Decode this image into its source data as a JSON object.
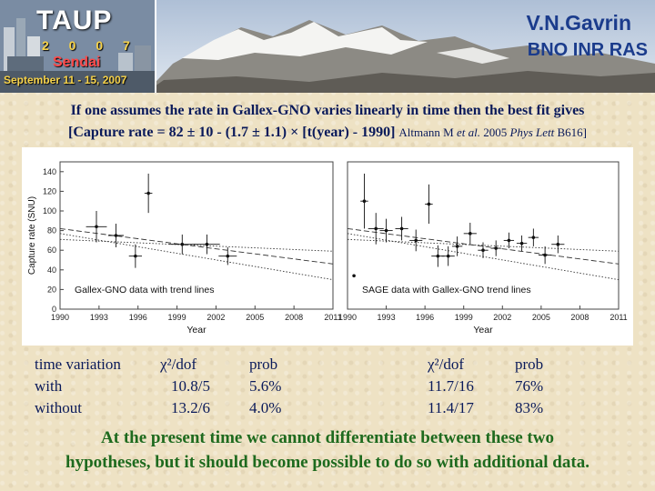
{
  "banner": {
    "logo": {
      "title": "TAUP",
      "year": "2 0 0 7",
      "city": "Sendai",
      "dates": "September 11 - 15, 2007"
    },
    "author": "V.N.Gavrin",
    "institution": "BNO INR RAS"
  },
  "statement": {
    "line1": "If one assumes the rate in Gallex-GNO varies linearly in time then the best fit gives",
    "formula": "[Capture rate = 82 ± 10 - (1.7 ± 1.1) × [t(year) - 1990]",
    "ref_prefix": "Altmann M ",
    "ref_etal": "et al.",
    "ref_year": " 2005 ",
    "ref_journal": "Phys Lett",
    "ref_vol": " B616]"
  },
  "chart_data": [
    {
      "type": "scatter",
      "title": "Gallex-GNO data with trend lines",
      "xlabel": "Year",
      "ylabel": "Capture rate (SNU)",
      "xlim": [
        1990,
        2011
      ],
      "ylim": [
        0,
        150
      ],
      "xticks": [
        1990,
        1993,
        1996,
        1999,
        2002,
        2005,
        2008,
        2011
      ],
      "yticks": [
        0,
        20,
        40,
        60,
        80,
        100,
        120,
        140
      ],
      "series": [
        {
          "points": [
            {
              "x": 1992.8,
              "y": 84,
              "xerr": 0.8,
              "yerr": 16
            },
            {
              "x": 1994.3,
              "y": 75,
              "xerr": 0.6,
              "yerr": 12
            },
            {
              "x": 1995.8,
              "y": 54,
              "xerr": 0.5,
              "yerr": 12
            },
            {
              "x": 1996.8,
              "y": 118,
              "xerr": 0.3,
              "yerr": 20
            },
            {
              "x": 1999.4,
              "y": 66,
              "xerr": 1.0,
              "yerr": 10
            },
            {
              "x": 2001.3,
              "y": 66,
              "xerr": 1.0,
              "yerr": 10
            },
            {
              "x": 2002.9,
              "y": 54,
              "xerr": 0.7,
              "yerr": 9
            }
          ]
        }
      ],
      "trend_lines": [
        {
          "style": "dashed",
          "from": [
            1990,
            82
          ],
          "to": [
            2011,
            46
          ]
        },
        {
          "style": "dotted",
          "from": [
            1990,
            71
          ],
          "to": [
            2011,
            59
          ]
        },
        {
          "style": "dotted",
          "from": [
            1990,
            77
          ],
          "to": [
            2011,
            30
          ]
        }
      ]
    },
    {
      "type": "scatter",
      "title": "SAGE data with Gallex-GNO trend lines",
      "xlabel": "Year",
      "ylabel": "",
      "xlim": [
        1990,
        2011
      ],
      "ylim": [
        0,
        150
      ],
      "xticks": [
        1990,
        1993,
        1996,
        1999,
        2002,
        2005,
        2008,
        2011
      ],
      "yticks": [],
      "series": [
        {
          "points": [
            {
              "x": 1990.5,
              "y": 34,
              "xerr": 0,
              "yerr": 0
            },
            {
              "x": 1991.3,
              "y": 110,
              "xerr": 0.3,
              "yerr": 28
            },
            {
              "x": 1992.2,
              "y": 82,
              "xerr": 0.6,
              "yerr": 16
            },
            {
              "x": 1993.0,
              "y": 80,
              "xerr": 0.5,
              "yerr": 12
            },
            {
              "x": 1994.2,
              "y": 82,
              "xerr": 0.5,
              "yerr": 12
            },
            {
              "x": 1995.3,
              "y": 70,
              "xerr": 0.5,
              "yerr": 11
            },
            {
              "x": 1996.3,
              "y": 107,
              "xerr": 0.3,
              "yerr": 20
            },
            {
              "x": 1997.0,
              "y": 54,
              "xerr": 0.5,
              "yerr": 11
            },
            {
              "x": 1997.8,
              "y": 54,
              "xerr": 0.5,
              "yerr": 10
            },
            {
              "x": 1998.5,
              "y": 64,
              "xerr": 0.4,
              "yerr": 10
            },
            {
              "x": 1999.5,
              "y": 77,
              "xerr": 0.5,
              "yerr": 11
            },
            {
              "x": 2000.5,
              "y": 60,
              "xerr": 0.4,
              "yerr": 8
            },
            {
              "x": 2001.5,
              "y": 62,
              "xerr": 0.4,
              "yerr": 8
            },
            {
              "x": 2002.5,
              "y": 70,
              "xerr": 0.4,
              "yerr": 8
            },
            {
              "x": 2003.5,
              "y": 67,
              "xerr": 0.4,
              "yerr": 8
            },
            {
              "x": 2004.4,
              "y": 73,
              "xerr": 0.4,
              "yerr": 9
            },
            {
              "x": 2005.3,
              "y": 55,
              "xerr": 0.5,
              "yerr": 9
            },
            {
              "x": 2006.3,
              "y": 66,
              "xerr": 0.5,
              "yerr": 9
            }
          ]
        }
      ],
      "trend_lines": [
        {
          "style": "dashed",
          "from": [
            1990,
            82
          ],
          "to": [
            2011,
            46
          ]
        },
        {
          "style": "dotted",
          "from": [
            1990,
            71
          ],
          "to": [
            2011,
            59
          ]
        },
        {
          "style": "dotted",
          "from": [
            1990,
            77
          ],
          "to": [
            2011,
            30
          ]
        }
      ]
    }
  ],
  "fit_table": {
    "row_labels": [
      "time variation",
      "with",
      "without"
    ],
    "gallex": {
      "chi_header": "χ²/dof",
      "prob_header": "prob",
      "chi": [
        "10.8/5",
        "13.2/6"
      ],
      "prob": [
        "5.6%",
        "4.0%"
      ]
    },
    "sage": {
      "chi_header": "χ²/dof",
      "prob_header": "prob",
      "chi": [
        "11.7/16",
        "11.4/17"
      ],
      "prob": [
        "76%",
        "83%"
      ]
    }
  },
  "conclusion": {
    "line1": "At the present time we cannot differentiate between these two",
    "line2": "hypotheses, but it should become possible to do so with additional data."
  }
}
